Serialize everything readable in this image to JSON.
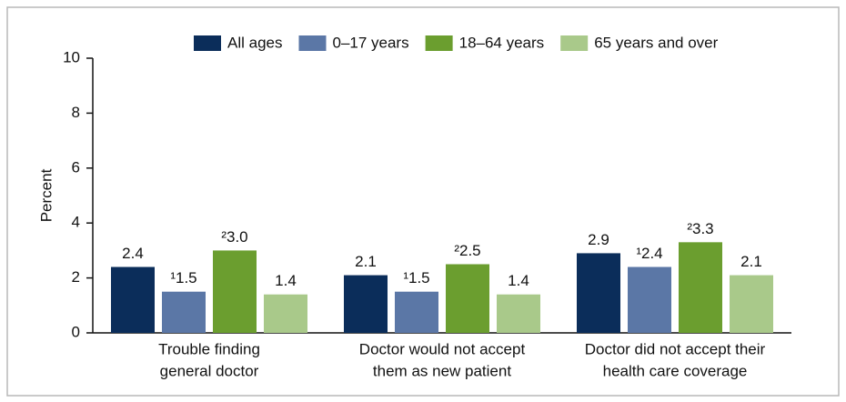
{
  "chart_data": {
    "type": "bar",
    "y_label": "Percent",
    "categories": [
      [
        "Trouble finding",
        "general doctor"
      ],
      [
        "Doctor would not accept",
        "them as new patient"
      ],
      [
        "Doctor did not accept their",
        "health care coverage"
      ]
    ],
    "series": [
      {
        "name": "All ages",
        "color": "#0b2d5a",
        "values": [
          2.4,
          2.1,
          2.9
        ],
        "value_labels": [
          "2.4",
          "2.1",
          "2.9"
        ]
      },
      {
        "name": "0–17 years",
        "color": "#5b77a6",
        "values": [
          1.5,
          1.5,
          2.4
        ],
        "value_labels": [
          "¹1.5",
          "¹1.5",
          "¹2.4"
        ]
      },
      {
        "name": "18–64 years",
        "color": "#6b9e2f",
        "values": [
          3.0,
          2.5,
          3.3
        ],
        "value_labels": [
          "²3.0",
          "²2.5",
          "²3.3"
        ]
      },
      {
        "name": "65 years and over",
        "color": "#a9c98a",
        "values": [
          1.4,
          1.4,
          2.1
        ],
        "value_labels": [
          "1.4",
          "1.4",
          "2.1"
        ]
      }
    ],
    "ylim": [
      0,
      10
    ],
    "yticks": [
      0,
      2,
      4,
      6,
      8,
      10
    ],
    "grid": false,
    "legend": "top"
  }
}
